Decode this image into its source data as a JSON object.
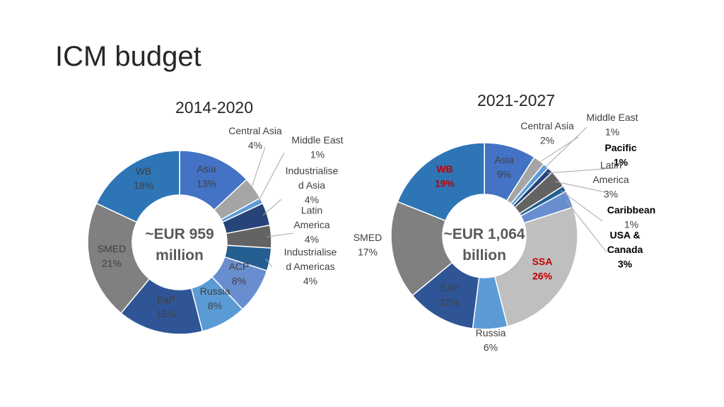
{
  "slide": {
    "title": "ICM budget"
  },
  "chart_data": [
    {
      "type": "donut",
      "title": "2014-2020",
      "center_text": [
        "~EUR 959",
        "million"
      ],
      "slices": [
        {
          "name": "Asia",
          "pct": "13%",
          "value": 13,
          "color": "#4472c4"
        },
        {
          "name": "Central Asia",
          "pct": "4%",
          "value": 4,
          "color": "#a5a5a5"
        },
        {
          "name": "Middle East",
          "pct": "1%",
          "value": 1,
          "color": "#5b9bd5"
        },
        {
          "name": "Industrialised Asia",
          "pct": "4%",
          "value": 4,
          "color": "#264478"
        },
        {
          "name": "Latin America",
          "pct": "4%",
          "value": 4,
          "color": "#636363"
        },
        {
          "name": "Industrialised Americas",
          "pct": "4%",
          "value": 4,
          "color": "#255e91"
        },
        {
          "name": "ACP",
          "pct": "8%",
          "value": 8,
          "color": "#698ed0"
        },
        {
          "name": "Russia",
          "pct": "8%",
          "value": 8,
          "color": "#5b9bd5"
        },
        {
          "name": "EaP",
          "pct": "15%",
          "value": 15,
          "color": "#2f5597"
        },
        {
          "name": "SMED",
          "pct": "21%",
          "value": 21,
          "color": "#808080"
        },
        {
          "name": "WB",
          "pct": "18%",
          "value": 18,
          "color": "#2e75b6"
        }
      ]
    },
    {
      "type": "donut",
      "title": "2021-2027",
      "center_text": [
        "~EUR 1,064",
        "billion"
      ],
      "slices": [
        {
          "name": "Asia",
          "pct": "9%",
          "value": 9,
          "color": "#4472c4"
        },
        {
          "name": "Central Asia",
          "pct": "2%",
          "value": 2,
          "color": "#a5a5a5"
        },
        {
          "name": "Middle East",
          "pct": "1%",
          "value": 1,
          "color": "#5b9bd5"
        },
        {
          "name": "Pacific",
          "pct": "1%",
          "value": 1,
          "color": "#264478"
        },
        {
          "name": "Latin America",
          "pct": "3%",
          "value": 3,
          "color": "#636363"
        },
        {
          "name": "Caribbean",
          "pct": "1%",
          "value": 1,
          "color": "#255e91"
        },
        {
          "name": "USA & Canada",
          "pct": "3%",
          "value": 3,
          "color": "#698ed0"
        },
        {
          "name": "SSA",
          "pct": "26%",
          "value": 26,
          "color": "#bfbfbf"
        },
        {
          "name": "Russia",
          "pct": "6%",
          "value": 6,
          "color": "#5b9bd5"
        },
        {
          "name": "EaP",
          "pct": "12%",
          "value": 12,
          "color": "#2f5597"
        },
        {
          "name": "SMED",
          "pct": "17%",
          "value": 17,
          "color": "#808080"
        },
        {
          "name": "WB",
          "pct": "19%",
          "value": 19,
          "color": "#2e75b6"
        }
      ]
    }
  ],
  "labels": {
    "left": [
      {
        "lines": [
          "Asia",
          "13%"
        ]
      },
      {
        "lines": [
          "Central Asia",
          "4%"
        ]
      },
      {
        "lines": [
          "Middle East",
          "1%"
        ]
      },
      {
        "lines": [
          "Industrialise",
          "d Asia",
          "4%"
        ]
      },
      {
        "lines": [
          "Latin",
          "America",
          "4%"
        ]
      },
      {
        "lines": [
          "Industrialise",
          "d Americas",
          "4%"
        ]
      },
      {
        "lines": [
          "ACP",
          "8%"
        ]
      },
      {
        "lines": [
          "Russia",
          "8%"
        ]
      },
      {
        "lines": [
          "EaP",
          "15%"
        ]
      },
      {
        "lines": [
          "SMED",
          "21%"
        ]
      },
      {
        "lines": [
          "WB",
          "18%"
        ]
      }
    ],
    "right": [
      {
        "lines": [
          "Asia",
          "9%"
        ]
      },
      {
        "lines": [
          "Central Asia",
          "2%"
        ]
      },
      {
        "lines": [
          "Middle East",
          "1%"
        ]
      },
      {
        "lines": [
          "Pacific",
          "1%"
        ]
      },
      {
        "lines": [
          "Latin",
          "America",
          "3%"
        ]
      },
      {
        "lines": [
          "Caribbean",
          "1%"
        ]
      },
      {
        "lines": [
          "USA &",
          "Canada",
          "3%"
        ]
      },
      {
        "lines": [
          "SSA",
          "26%"
        ]
      },
      {
        "lines": [
          "Russia",
          "6%"
        ]
      },
      {
        "lines": [
          "EaP",
          "12%"
        ]
      },
      {
        "lines": [
          "SMED",
          "17%"
        ]
      },
      {
        "lines": [
          "WB",
          "19%"
        ]
      }
    ]
  },
  "emphasis_colors": {
    "highlight_red": "#c00000",
    "bold_black": "#000000"
  }
}
